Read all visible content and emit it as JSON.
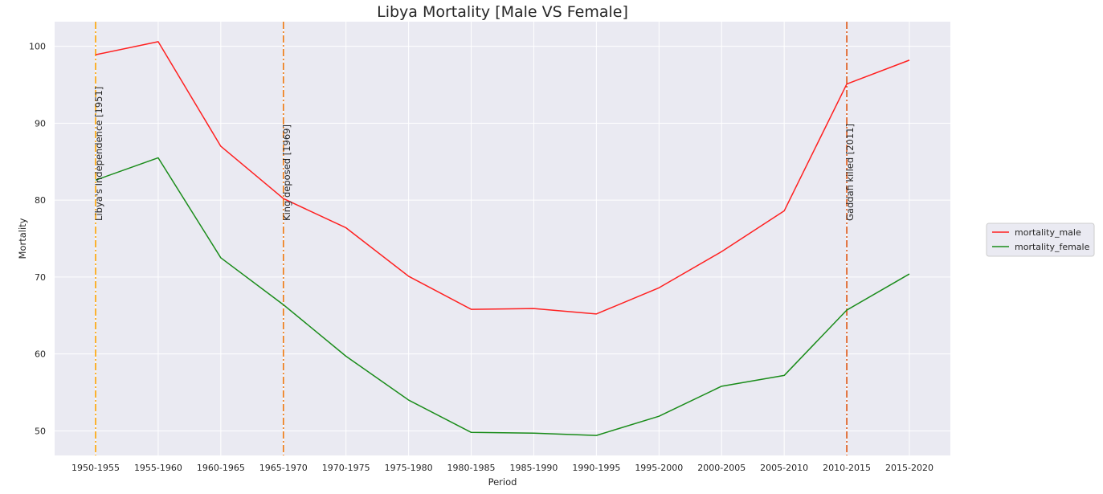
{
  "chart_data": {
    "type": "line",
    "title": "Libya Mortality [Male VS Female]",
    "xlabel": "Period",
    "ylabel": "Mortality",
    "categories": [
      "1950-1955",
      "1955-1960",
      "1960-1965",
      "1965-1970",
      "1970-1975",
      "1975-1980",
      "1980-1985",
      "1985-1990",
      "1990-1995",
      "1995-2000",
      "2000-2005",
      "2005-2010",
      "2010-2015",
      "2015-2020"
    ],
    "ylim": [
      46.8,
      103.2
    ],
    "yticks": [
      50,
      60,
      70,
      80,
      90,
      100
    ],
    "grid": true,
    "legend_position": "right",
    "series": [
      {
        "name": "mortality_male",
        "color": "#ff2020",
        "values": [
          98.9,
          100.6,
          87.0,
          80.2,
          76.4,
          70.1,
          65.8,
          65.9,
          65.2,
          68.6,
          73.3,
          78.6,
          95.1,
          98.2
        ]
      },
      {
        "name": "mortality_female",
        "color": "#1a8c1a",
        "values": [
          82.6,
          85.5,
          72.5,
          66.4,
          59.7,
          54.0,
          49.8,
          49.7,
          49.4,
          51.9,
          55.8,
          57.2,
          65.7,
          70.4
        ]
      }
    ],
    "annotations": [
      {
        "label": "Libya's Independence [1951]",
        "category": "1950-1955",
        "color": "#ffa500"
      },
      {
        "label": "King deposed [1969]",
        "category": "1965-1970",
        "color": "#f07a10"
      },
      {
        "label": "Gaddafi killed [2011]",
        "category": "2010-2015",
        "color": "#e05510"
      }
    ]
  }
}
